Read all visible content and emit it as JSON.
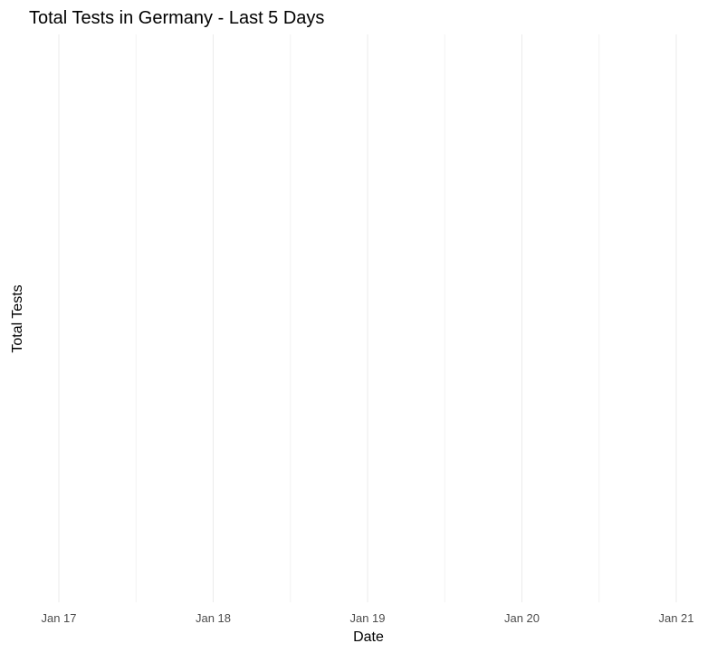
{
  "chart_data": {
    "type": "line",
    "title": "Total Tests in Germany - Last 5 Days",
    "xlabel": "Date",
    "ylabel": "Total Tests",
    "x_ticks": [
      "Jan 17",
      "Jan 18",
      "Jan 19",
      "Jan 20",
      "Jan 21"
    ],
    "series": [],
    "grid": true,
    "legend": "none",
    "colors": {
      "background": "#ffffff",
      "grid_major": "#ebebeb",
      "grid_minor": "#f2f2f2",
      "text": "#000000",
      "tick_text": "#4d4d4d"
    }
  }
}
